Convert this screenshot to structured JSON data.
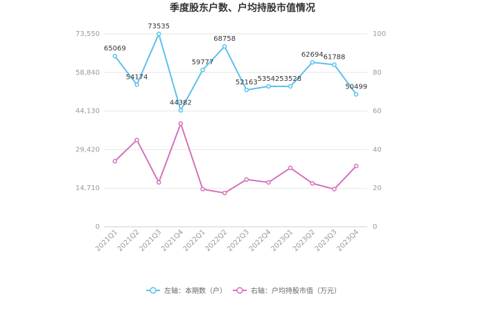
{
  "chart_data": {
    "type": "line",
    "title": "季度股东户数、户均持股市值情况",
    "categories": [
      "2021Q1",
      "2021Q2",
      "2021Q3",
      "2021Q4",
      "2022Q1",
      "2022Q2",
      "2022Q3",
      "2022Q4",
      "2023Q1",
      "2023Q2",
      "2023Q3",
      "2023Q4"
    ],
    "series": [
      {
        "name": "左轴：本期数（户）",
        "axis": "left",
        "color": "#5bc0eb",
        "values": [
          65069,
          54174,
          73535,
          44382,
          59777,
          68758,
          52163,
          53542,
          53528,
          62694,
          61788,
          50499
        ]
      },
      {
        "name": "右轴：户均持股市值（万元）",
        "axis": "right",
        "color": "#d470b8",
        "values": [
          34,
          45,
          23,
          53.5,
          19.5,
          17.5,
          24.5,
          23,
          30.5,
          22.5,
          19.5,
          31.5
        ]
      }
    ],
    "left_axis": {
      "ticks": [
        0,
        14710,
        29420,
        44130,
        58840,
        73550
      ],
      "tick_labels": [
        "0",
        "14,710",
        "29,420",
        "44,130",
        "58,840",
        "73,550"
      ],
      "ylim": [
        0,
        73550
      ]
    },
    "right_axis": {
      "ticks": [
        0,
        20,
        40,
        60,
        80,
        100
      ],
      "tick_labels": [
        "0",
        "20",
        "40",
        "60",
        "80",
        "100"
      ],
      "ylim": [
        0,
        100
      ]
    },
    "grid": true,
    "legend_position": "bottom"
  }
}
